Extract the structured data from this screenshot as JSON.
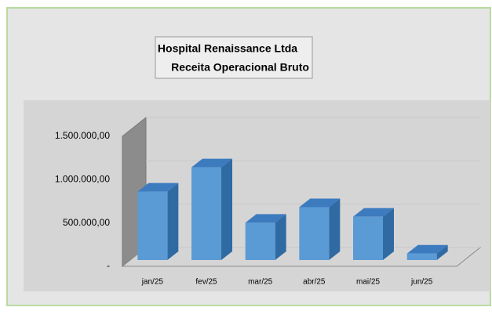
{
  "chart_data": {
    "type": "bar3d",
    "title": "Hospital Renaissance Ltda",
    "subtitle": "Receita Operacional Bruto",
    "categories": [
      "jan/25",
      "fev/25",
      "mar/25",
      "abr/25",
      "mai/25",
      "jun/25"
    ],
    "values": [
      790000,
      1070000,
      430000,
      610000,
      500000,
      75000
    ],
    "color": "#5b9bd5",
    "ylim": [
      0,
      1500000
    ],
    "yticks": [
      {
        "value": 0,
        "label": "-"
      },
      {
        "value": 500000,
        "label": "500.000,00"
      },
      {
        "value": 1000000,
        "label": "1.000.000,00"
      },
      {
        "value": 1500000,
        "label": "1.500.000,00"
      }
    ],
    "grid": true
  }
}
